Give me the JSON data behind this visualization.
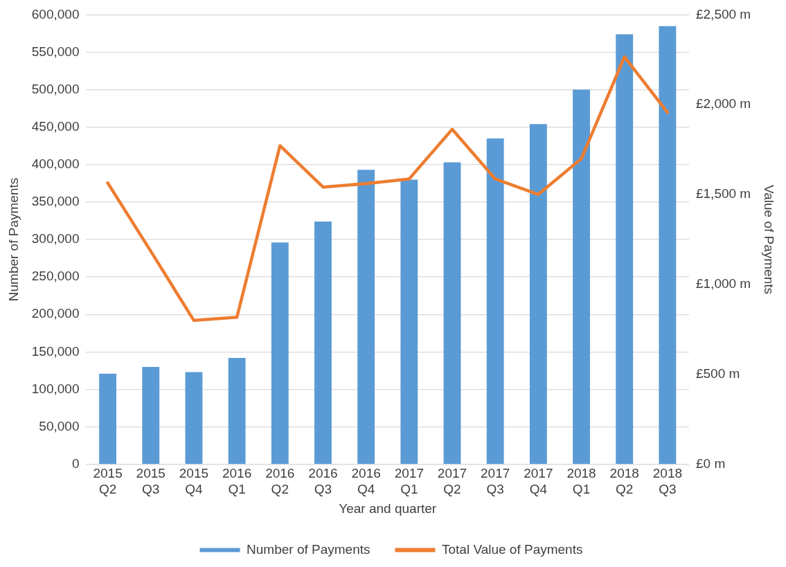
{
  "chart_data": {
    "type": "bar",
    "xlabel": "Year and quarter",
    "ylabel": "Number of Payments",
    "y2label": "Value of Payments",
    "categories": [
      "2015 Q2",
      "2015 Q3",
      "2015 Q4",
      "2016 Q1",
      "2016 Q2",
      "2016 Q3",
      "2016 Q4",
      "2017 Q1",
      "2017 Q2",
      "2017 Q3",
      "2017 Q4",
      "2018 Q1",
      "2018 Q2",
      "2018 Q3"
    ],
    "series": [
      {
        "name": "Number of Payments",
        "color": "#5b9bd5",
        "values": [
          121000,
          130000,
          123000,
          142000,
          296000,
          324000,
          393000,
          380000,
          403000,
          435000,
          454000,
          500000,
          574000,
          585000
        ]
      },
      {
        "name": "Total Value of Payments",
        "type": "line",
        "axis": "y2",
        "color": "#ed7d31",
        "values": [
          1565,
          1185,
          800,
          818,
          1772,
          1542,
          1561,
          1587,
          1863,
          1587,
          1501,
          1700,
          2266,
          1957
        ]
      }
    ],
    "ylim": [
      0,
      600000
    ],
    "yticks": [
      {
        "value": 0,
        "label": "0"
      },
      {
        "value": 50000,
        "label": "50,000"
      },
      {
        "value": 100000,
        "label": "100,000"
      },
      {
        "value": 150000,
        "label": "150,000"
      },
      {
        "value": 200000,
        "label": "200,000"
      },
      {
        "value": 250000,
        "label": "250,000"
      },
      {
        "value": 300000,
        "label": "300,000"
      },
      {
        "value": 350000,
        "label": "350,000"
      },
      {
        "value": 400000,
        "label": "400,000"
      },
      {
        "value": 450000,
        "label": "450,000"
      },
      {
        "value": 500000,
        "label": "500,000"
      },
      {
        "value": 550000,
        "label": "550,000"
      },
      {
        "value": 600000,
        "label": "600,000"
      }
    ],
    "y2lim": [
      0,
      2500
    ],
    "y2ticks": [
      {
        "value": 0,
        "label": "£0 m"
      },
      {
        "value": 500,
        "label": "£500 m"
      },
      {
        "value": 1000,
        "label": "£1,000 m"
      },
      {
        "value": 1500,
        "label": "£1,500 m"
      },
      {
        "value": 2000,
        "label": "£2,000 m"
      },
      {
        "value": 2500,
        "label": "£2,500 m"
      }
    ],
    "grid": "y",
    "legend": "bottom",
    "marker": "none",
    "line_style": "solid"
  }
}
